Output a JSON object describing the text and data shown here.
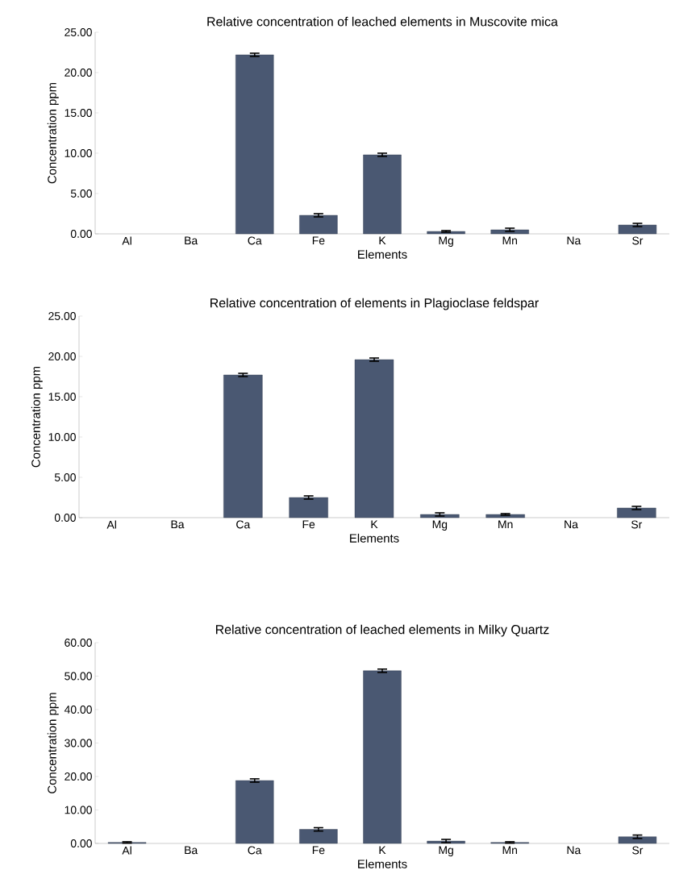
{
  "chart_data": [
    {
      "type": "bar",
      "title": "Relative concentration of leached elements in Muscovite mica",
      "xlabel": "Elements",
      "ylabel": "Concentration ppm",
      "categories": [
        "Al",
        "Ba",
        "Ca",
        "Fe",
        "K",
        "Mg",
        "Mn",
        "Na",
        "Sr"
      ],
      "values": [
        null,
        null,
        22.2,
        2.3,
        9.8,
        0.3,
        0.5,
        null,
        1.1
      ],
      "errors": [
        null,
        null,
        0.2,
        0.2,
        0.2,
        0.1,
        0.2,
        null,
        0.2
      ],
      "color": "#4a5872",
      "ylim": [
        0,
        25
      ],
      "yticks": [
        {
          "value": 0,
          "label": "0.00"
        },
        {
          "value": 5,
          "label": "5.00"
        },
        {
          "value": 10,
          "label": "10.00"
        },
        {
          "value": 15,
          "label": "15.00"
        },
        {
          "value": 20,
          "label": "20.00"
        },
        {
          "value": 25,
          "label": "25.00"
        }
      ]
    },
    {
      "type": "bar",
      "title": "Relative concentration of elements in Plagioclase feldspar",
      "xlabel": "Elements",
      "ylabel": "Concentration ppm",
      "categories": [
        "Al",
        "Ba",
        "Ca",
        "Fe",
        "K",
        "Mg",
        "Mn",
        "Na",
        "Sr"
      ],
      "values": [
        null,
        null,
        17.7,
        2.5,
        19.6,
        0.4,
        0.4,
        null,
        1.2
      ],
      "errors": [
        null,
        null,
        0.2,
        0.2,
        0.2,
        0.2,
        0.1,
        null,
        0.2
      ],
      "color": "#4a5872",
      "ylim": [
        0,
        25
      ],
      "yticks": [
        {
          "value": 0,
          "label": "0.00"
        },
        {
          "value": 5,
          "label": "5.00"
        },
        {
          "value": 10,
          "label": "10.00"
        },
        {
          "value": 15,
          "label": "15.00"
        },
        {
          "value": 20,
          "label": "20.00"
        },
        {
          "value": 25,
          "label": "25.00"
        }
      ]
    },
    {
      "type": "bar",
      "title": "Relative concentration of leached elements in Milky Quartz",
      "xlabel": "Elements",
      "ylabel": "Concentration ppm",
      "categories": [
        "Al",
        "Ba",
        "Ca",
        "Fe",
        "K",
        "Mg",
        "Mn",
        "Na",
        "Sr"
      ],
      "values": [
        0.3,
        null,
        18.8,
        4.2,
        51.6,
        0.7,
        0.3,
        null,
        2.0
      ],
      "errors": [
        0.2,
        null,
        0.5,
        0.5,
        0.5,
        0.5,
        0.2,
        null,
        0.5
      ],
      "color": "#4a5872",
      "ylim": [
        0,
        60
      ],
      "yticks": [
        {
          "value": 0,
          "label": "0.00"
        },
        {
          "value": 10,
          "label": "10.00"
        },
        {
          "value": 20,
          "label": "20.00"
        },
        {
          "value": 30,
          "label": "30.00"
        },
        {
          "value": 40,
          "label": "40.00"
        },
        {
          "value": 50,
          "label": "50.00"
        },
        {
          "value": 60,
          "label": "60.00"
        }
      ]
    }
  ]
}
